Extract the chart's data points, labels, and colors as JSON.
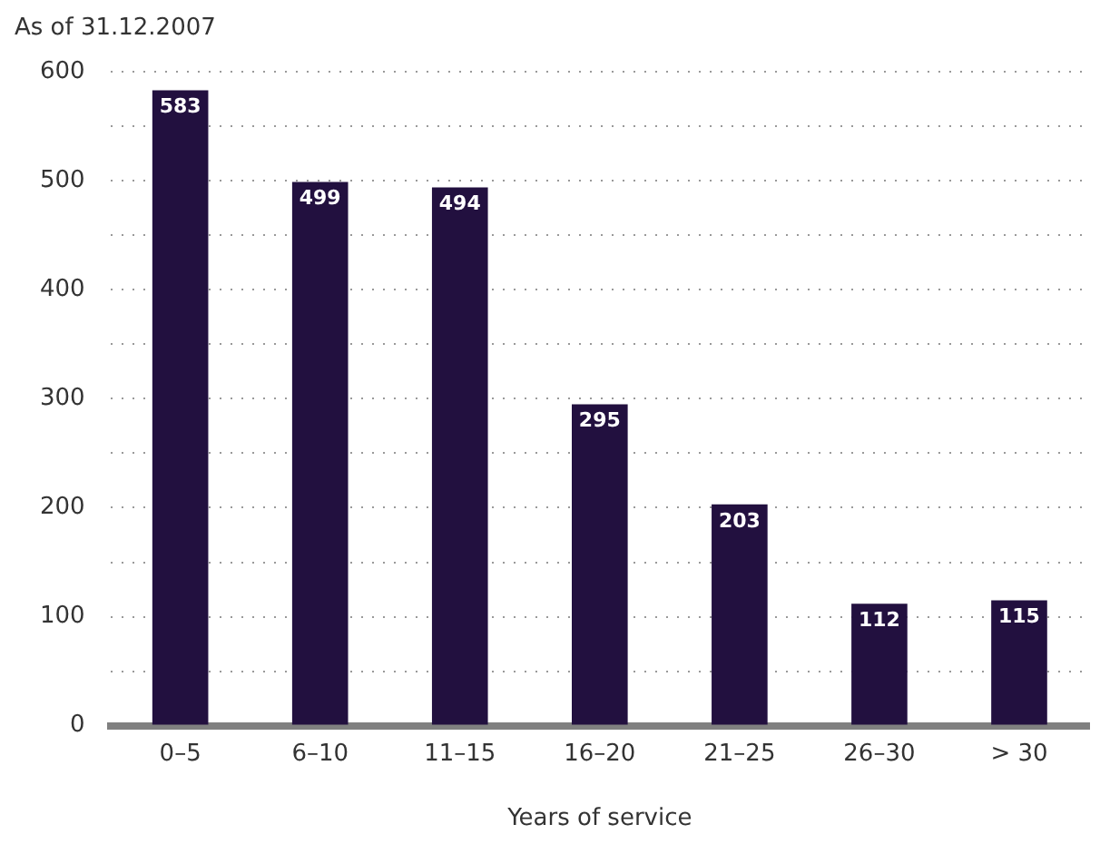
{
  "chart_data": {
    "type": "bar",
    "title": "As of 31.12.2007",
    "xlabel": "Years of service",
    "categories": [
      "0–5",
      "6–10",
      "11–15",
      "16–20",
      "21–25",
      "26–30",
      "> 30"
    ],
    "values": [
      583,
      499,
      494,
      295,
      203,
      112,
      115
    ],
    "color": "#22103f",
    "ylim": [
      0,
      600
    ],
    "yticks": [
      0,
      {
        "value": 50,
        "label": null
      },
      100,
      {
        "value": 150,
        "label": null
      },
      200,
      {
        "value": 250,
        "label": null
      },
      300,
      {
        "value": 350,
        "label": null
      },
      400,
      {
        "value": 450,
        "label": null
      },
      500,
      {
        "value": 550,
        "label": null
      },
      600
    ],
    "grid": "y",
    "data_labels": true
  }
}
